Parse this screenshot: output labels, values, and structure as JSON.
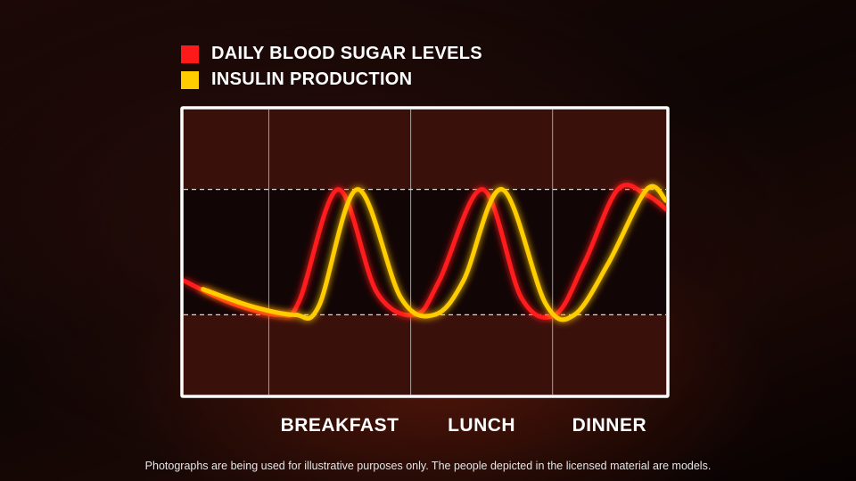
{
  "legend": [
    {
      "label": "DAILY BLOOD SUGAR LEVELS",
      "color": "#ff1a1a"
    },
    {
      "label": "INSULIN PRODUCTION",
      "color": "#ffcc00"
    }
  ],
  "chart_data": {
    "type": "line",
    "categories": [
      "BREAKFAST",
      "LUNCH",
      "DINNER"
    ],
    "x_range": [
      0,
      10
    ],
    "ylim": [
      0,
      10
    ],
    "reference_lines": [
      7.2,
      2.8
    ],
    "grid": false,
    "legend_position": "top-left",
    "series": [
      {
        "name": "DAILY BLOOD SUGAR LEVELS",
        "color": "#ff1a1a",
        "x": [
          0,
          1,
          2,
          2.4,
          3.2,
          4.0,
          4.8,
          5.3,
          6.2,
          7.0,
          7.7,
          8.3,
          9.0,
          9.6,
          10
        ],
        "values": [
          4.0,
          3.2,
          2.8,
          3.3,
          7.2,
          3.6,
          2.8,
          4.0,
          7.2,
          3.4,
          2.8,
          4.6,
          7.2,
          7.0,
          6.5
        ]
      },
      {
        "name": "INSULIN PRODUCTION",
        "color": "#ffcc00",
        "x": [
          0.4,
          1.4,
          2.3,
          2.8,
          3.6,
          4.5,
          5.2,
          5.8,
          6.6,
          7.5,
          8.1,
          8.8,
          9.6,
          10
        ],
        "values": [
          3.7,
          3.1,
          2.8,
          3.1,
          7.2,
          3.4,
          2.8,
          4.0,
          7.2,
          3.2,
          2.8,
          4.6,
          7.2,
          6.8
        ]
      }
    ]
  },
  "disclaimer": "Photographs are being used for illustrative purposes only. The people depicted in the licensed material are models."
}
